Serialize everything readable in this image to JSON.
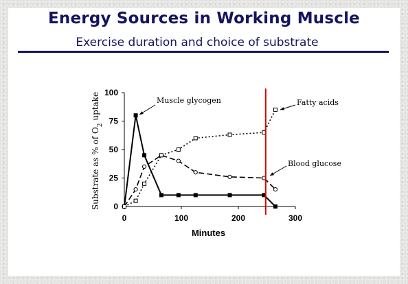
{
  "slide": {
    "title": "Energy Sources in Working Muscle",
    "subtitle": "Exercise duration and choice of substrate"
  },
  "chart_data": {
    "type": "line",
    "xlabel": "Minutes",
    "ylabel": "Substrate as % of O2 uptake",
    "xlim": [
      0,
      300
    ],
    "ylim": [
      0,
      100
    ],
    "xticks": [
      0,
      100,
      200,
      300
    ],
    "yticks": [
      0,
      25,
      50,
      75,
      100
    ],
    "grid": false,
    "series": [
      {
        "name": "Muscle glycogen",
        "marker": "filled-square",
        "dash": "solid",
        "x": [
          0,
          20,
          35,
          65,
          95,
          125,
          185,
          245,
          265
        ],
        "y": [
          0,
          80,
          45,
          10,
          10,
          10,
          10,
          10,
          0
        ]
      },
      {
        "name": "Blood glucose",
        "marker": "open-circle",
        "dash": "long-dash",
        "x": [
          0,
          20,
          35,
          65,
          95,
          125,
          185,
          245,
          265
        ],
        "y": [
          0,
          15,
          35,
          45,
          40,
          30,
          26,
          25,
          15
        ]
      },
      {
        "name": "Fatty acids",
        "marker": "open-square",
        "dash": "dotted",
        "x": [
          0,
          20,
          35,
          65,
          95,
          125,
          185,
          245,
          265
        ],
        "y": [
          0,
          5,
          20,
          45,
          50,
          60,
          63,
          65,
          85
        ]
      }
    ],
    "marker_line_x": 248,
    "colors": {
      "series": "#000000",
      "marker_line": "#e00000",
      "title": "#14145e"
    }
  }
}
